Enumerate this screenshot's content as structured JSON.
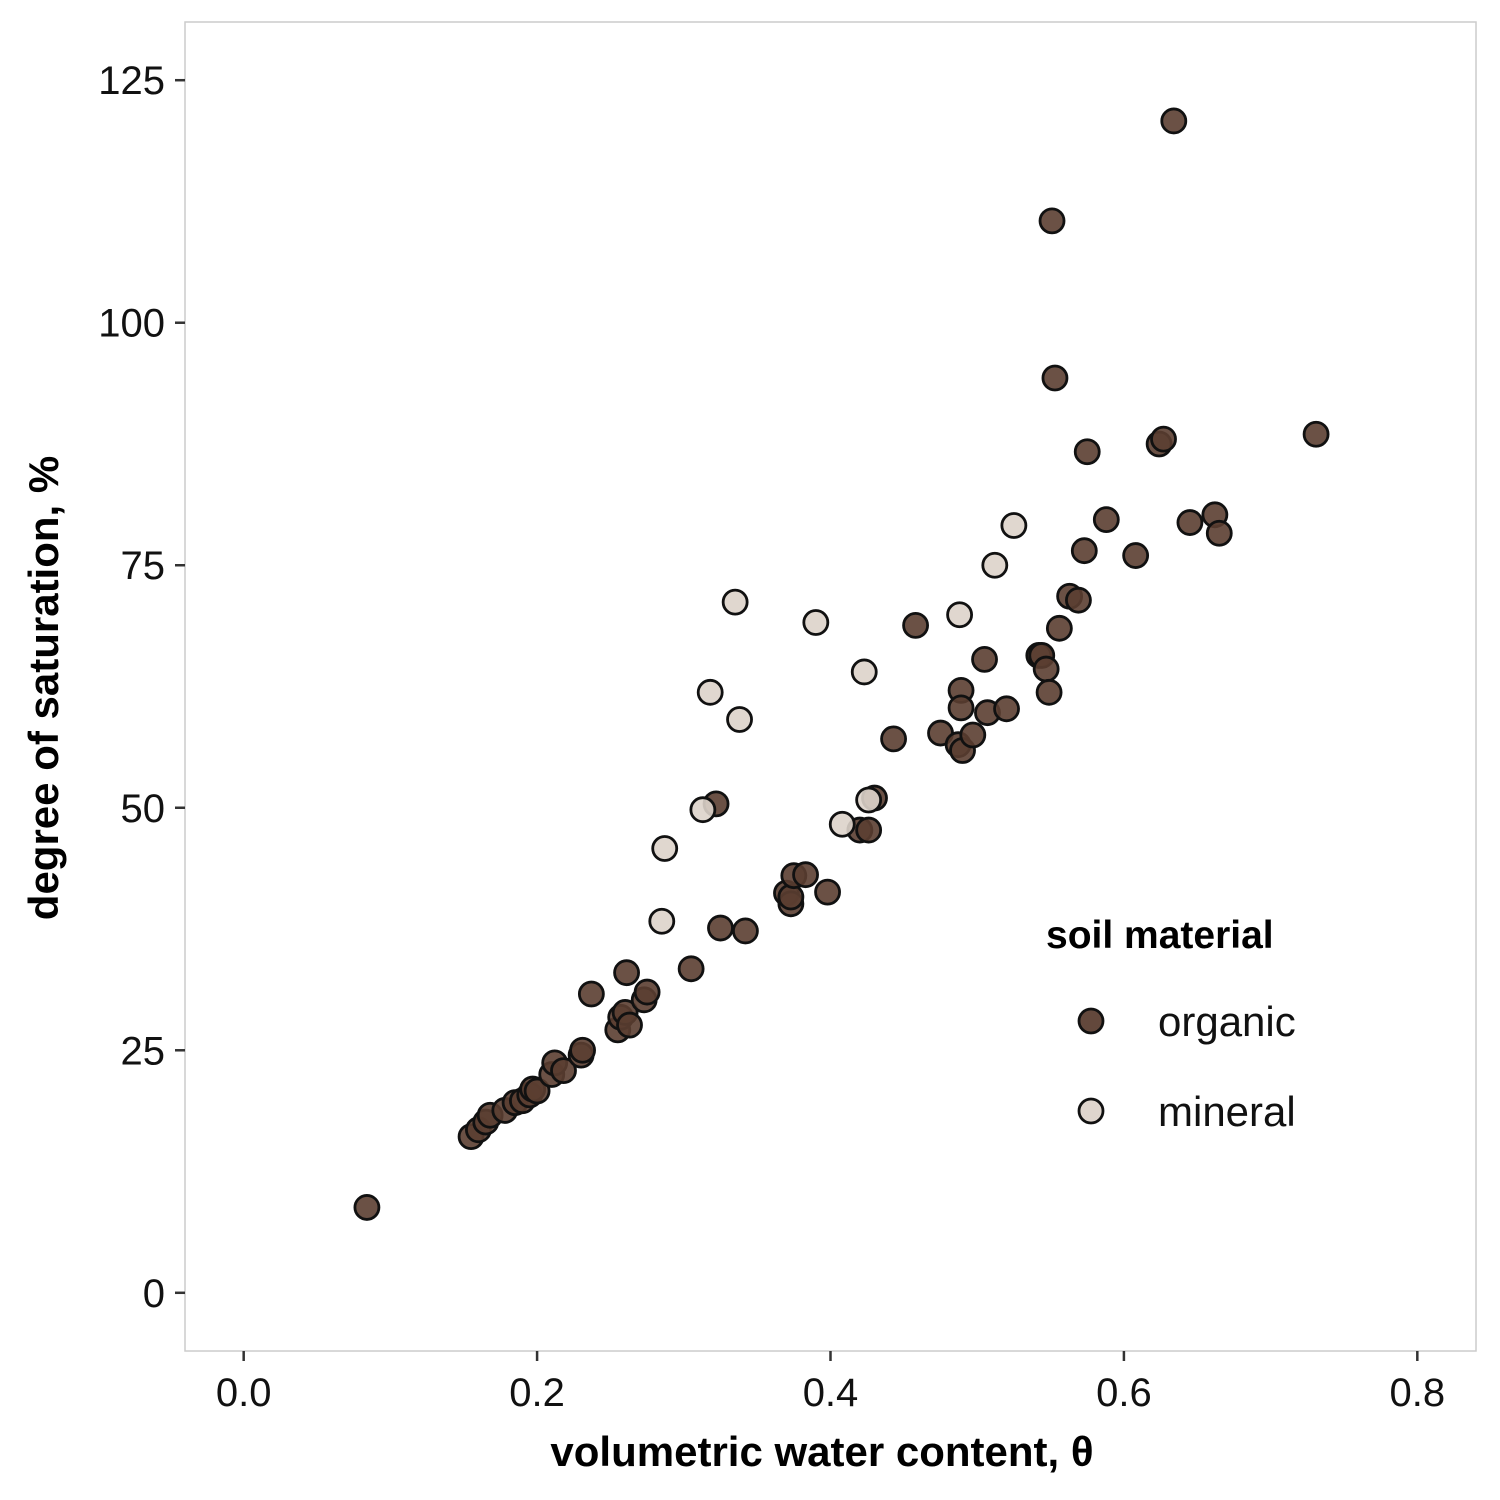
{
  "chart_data": {
    "type": "scatter",
    "xlabel": "volumetric water content, θ",
    "ylabel": "degree of saturation, %",
    "xlim": [
      -0.04,
      0.84
    ],
    "ylim": [
      -6,
      131
    ],
    "xticks": [
      "0.0",
      "0.2",
      "0.4",
      "0.6",
      "0.8"
    ],
    "yticks": [
      "0",
      "25",
      "50",
      "75",
      "100",
      "125"
    ],
    "grid": false,
    "legend": {
      "title": "soil material",
      "placement": "right-inside",
      "entries": [
        "organic",
        "mineral"
      ]
    },
    "colors": {
      "organic": "#5b3e31",
      "mineral": "#ddd3ca",
      "stroke": "#111111",
      "panel_border": "#cccccc"
    },
    "series": [
      {
        "name": "organic",
        "x": [
          0.084,
          0.155,
          0.16,
          0.165,
          0.168,
          0.178,
          0.185,
          0.19,
          0.195,
          0.197,
          0.2,
          0.21,
          0.212,
          0.218,
          0.23,
          0.231,
          0.237,
          0.255,
          0.257,
          0.26,
          0.261,
          0.263,
          0.273,
          0.275,
          0.305,
          0.322,
          0.325,
          0.342,
          0.37,
          0.373,
          0.373,
          0.375,
          0.383,
          0.398,
          0.42,
          0.426,
          0.43,
          0.443,
          0.458,
          0.475,
          0.487,
          0.489,
          0.489,
          0.49,
          0.497,
          0.505,
          0.507,
          0.52,
          0.542,
          0.544,
          0.547,
          0.549,
          0.551,
          0.553,
          0.556,
          0.563,
          0.569,
          0.573,
          0.575,
          0.588,
          0.608,
          0.624,
          0.627,
          0.634,
          0.645,
          0.662,
          0.665,
          0.731
        ],
        "y": [
          8.8,
          16.1,
          16.8,
          17.6,
          18.3,
          18.8,
          19.6,
          19.8,
          20.4,
          21.0,
          20.8,
          22.5,
          23.7,
          22.9,
          24.5,
          25.0,
          30.8,
          27.1,
          28.4,
          28.9,
          33.0,
          27.6,
          30.2,
          31.0,
          33.4,
          50.4,
          37.6,
          37.3,
          41.2,
          40.1,
          40.8,
          43.0,
          43.1,
          41.3,
          47.7,
          47.7,
          51.0,
          57.1,
          68.8,
          57.7,
          56.5,
          62.1,
          60.3,
          55.9,
          57.5,
          65.3,
          59.8,
          60.2,
          65.7,
          65.7,
          64.3,
          61.9,
          110.5,
          94.3,
          68.5,
          71.8,
          71.4,
          76.5,
          86.7,
          79.7,
          76.0,
          87.5,
          88.0,
          120.8,
          79.4,
          80.2,
          78.3,
          88.5
        ]
      },
      {
        "name": "mineral",
        "x": [
          0.285,
          0.287,
          0.313,
          0.318,
          0.335,
          0.338,
          0.39,
          0.408,
          0.423,
          0.426,
          0.488,
          0.512,
          0.525
        ],
        "y": [
          38.3,
          45.8,
          49.8,
          61.9,
          71.2,
          59.1,
          69.1,
          48.3,
          64.0,
          50.8,
          69.9,
          75.0,
          79.1
        ]
      }
    ]
  }
}
